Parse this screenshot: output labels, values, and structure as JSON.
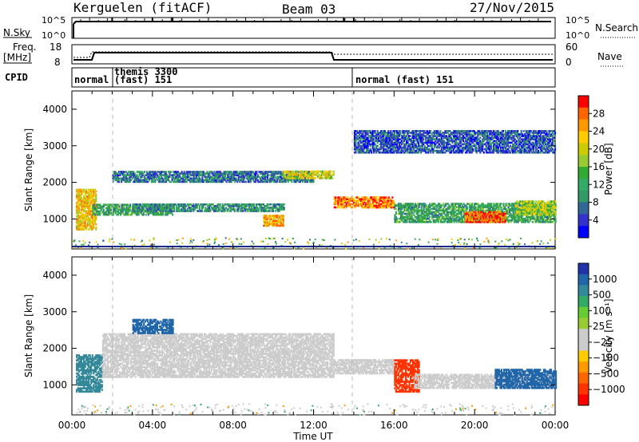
{
  "header": {
    "station": "Kerguelen (fitACF)",
    "beam": "Beam 03",
    "date": "27/Nov/2015"
  },
  "panels": {
    "nsky": {
      "label": "N.Sky",
      "ticks_left": [
        "10^5",
        "10^0"
      ],
      "ticks_right": [
        "10^5",
        "10^0"
      ],
      "right_label": "N.Search"
    },
    "freq": {
      "label_line1": "Freq.",
      "label_line2": "[MHz]",
      "ticks_left": [
        "18",
        "8"
      ],
      "ticks_right": [
        "60",
        "0"
      ],
      "right_label": "Nave"
    },
    "cpid": {
      "label": "CPID",
      "segments": [
        {
          "text": "normal",
          "start_hour": 0.0
        },
        {
          "text": "themis 3300",
          "start_hour": 2.0
        },
        {
          "text": "(fast) 151",
          "start_hour": 2.0
        },
        {
          "text": "normal (fast) 151",
          "start_hour": 14.0
        }
      ]
    }
  },
  "axes": {
    "ylabel_range": "Slant Range [km]",
    "yticks": [
      "1000",
      "2000",
      "3000",
      "4000"
    ],
    "ytick_values": [
      1000,
      2000,
      3000,
      4000
    ],
    "xticks": [
      "00:00",
      "04:00",
      "08:00",
      "12:00",
      "16:00",
      "20:00",
      "00:00"
    ],
    "xtick_values": [
      0,
      4,
      8,
      12,
      16,
      20,
      24
    ],
    "xlabel": "Time UT"
  },
  "colorbars": {
    "power": {
      "label": "Power [dB]",
      "ticks": [
        "28",
        "24",
        "20",
        "16",
        "12",
        "8",
        "4"
      ],
      "colors": [
        "#ff0000",
        "#ff6600",
        "#ff9900",
        "#ffcc00",
        "#cccc00",
        "#99cc33",
        "#33aa33",
        "#33aa66",
        "#339966",
        "#336699",
        "#3333cc",
        "#0000ff"
      ]
    },
    "velocity": {
      "label": "Velocity [m s⁻¹]",
      "ticks": [
        "1000",
        "500",
        "100",
        "25",
        "−25",
        "−100",
        "−500",
        "−1000"
      ],
      "colors": [
        "#2233aa",
        "#2266aa",
        "#338899",
        "#33aa66",
        "#66cc33",
        "#99cc33",
        "#cccccc",
        "#cccccc",
        "#ffcc00",
        "#ff9900",
        "#ff6600",
        "#ff3300",
        "#ff0000"
      ]
    }
  },
  "chart_data": [
    {
      "type": "heatmap",
      "name": "power",
      "x_range_hours": [
        0,
        24
      ],
      "y_range_km": [
        180,
        4500
      ],
      "blobs": [
        {
          "t": [
            0.2,
            1.2
          ],
          "r": [
            700,
            1800
          ],
          "v": 22
        },
        {
          "t": [
            1.0,
            5.0
          ],
          "r": [
            1100,
            1400
          ],
          "v": 12
        },
        {
          "t": [
            2.0,
            12.0
          ],
          "r": [
            2000,
            2300
          ],
          "v": 8
        },
        {
          "t": [
            3.0,
            10.5
          ],
          "r": [
            1200,
            1400
          ],
          "v": 10
        },
        {
          "t": [
            9.5,
            10.5
          ],
          "r": [
            800,
            1100
          ],
          "v": 24
        },
        {
          "t": [
            10.5,
            13.0
          ],
          "r": [
            2100,
            2300
          ],
          "v": 20
        },
        {
          "t": [
            13.0,
            16.0
          ],
          "r": [
            1300,
            1600
          ],
          "v": 26
        },
        {
          "t": [
            16.0,
            24.0
          ],
          "r": [
            900,
            1400
          ],
          "v": 12
        },
        {
          "t": [
            19.5,
            21.5
          ],
          "r": [
            900,
            1200
          ],
          "v": 28
        },
        {
          "t": [
            22.0,
            24.0
          ],
          "r": [
            1100,
            1500
          ],
          "v": 18
        },
        {
          "t": [
            14.0,
            24.0
          ],
          "r": [
            2800,
            3400
          ],
          "v": 6
        }
      ]
    },
    {
      "type": "heatmap",
      "name": "velocity",
      "x_range_hours": [
        0,
        24
      ],
      "y_range_km": [
        180,
        4500
      ],
      "blobs": [
        {
          "t": [
            0.2,
            1.5
          ],
          "r": [
            800,
            1800
          ],
          "v": 100
        },
        {
          "t": [
            1.5,
            13.0
          ],
          "r": [
            1200,
            2400
          ],
          "v": 0
        },
        {
          "t": [
            3.0,
            5.0
          ],
          "r": [
            2400,
            2800
          ],
          "v": 500
        },
        {
          "t": [
            13.0,
            16.0
          ],
          "r": [
            1300,
            1700
          ],
          "v": 0
        },
        {
          "t": [
            16.0,
            17.2
          ],
          "r": [
            800,
            1700
          ],
          "v": -500
        },
        {
          "t": [
            17.0,
            24.0
          ],
          "r": [
            900,
            1300
          ],
          "v": 0
        },
        {
          "t": [
            21.0,
            24.0
          ],
          "r": [
            900,
            1400
          ],
          "v": 500
        }
      ]
    }
  ]
}
